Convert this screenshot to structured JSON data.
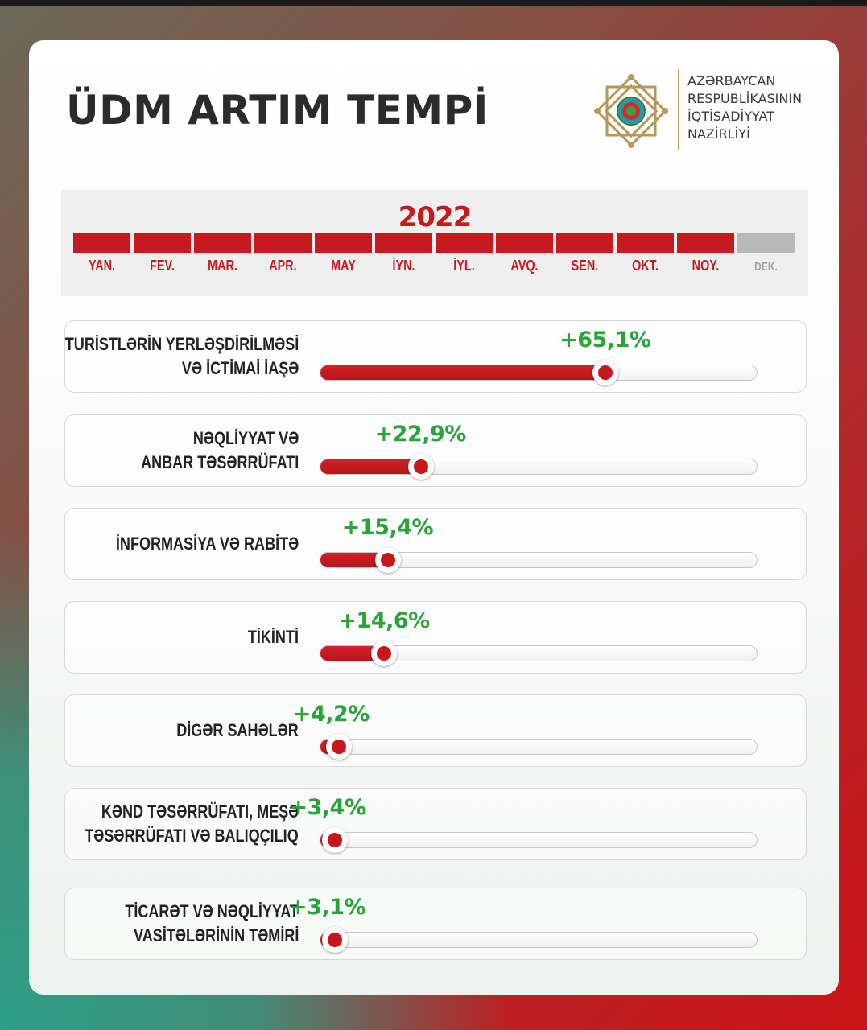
{
  "title": "ÜDM ARTIM TEMPİ",
  "ministry": {
    "lines": [
      "AZƏRBAYCAN",
      "RESPUBLİKASININ",
      "İQTİSADİYYAT",
      "NAZİRLİYİ"
    ]
  },
  "timeline": {
    "year": "2022",
    "months": [
      {
        "label": "YAN.",
        "active": true
      },
      {
        "label": "FEV.",
        "active": true
      },
      {
        "label": "MAR.",
        "active": true
      },
      {
        "label": "APR.",
        "active": true
      },
      {
        "label": "MAY",
        "active": true
      },
      {
        "label": "İYN.",
        "active": true
      },
      {
        "label": "İYL.",
        "active": true
      },
      {
        "label": "AVQ.",
        "active": true
      },
      {
        "label": "SEN.",
        "active": true
      },
      {
        "label": "OKT.",
        "active": true
      },
      {
        "label": "NOY.",
        "active": true
      },
      {
        "label": "DEK.",
        "active": false
      }
    ]
  },
  "colors": {
    "accent_red": "#c41b20",
    "value_green": "#2aa33a",
    "inactive_gray": "#b9b9b9"
  },
  "chart_data": {
    "type": "bar",
    "title": "ÜDM ARTIM TEMPİ",
    "subtitle": "2022",
    "categories": [
      [
        "TURİSTLƏRİN YERLƏŞDİRİLMƏSİ",
        "VƏ İCTİMAİ İAŞƏ"
      ],
      [
        "NƏQLİYYAT VƏ",
        "ANBAR TƏSƏRRÜFATI"
      ],
      [
        "İNFORMASİYA VƏ RABİTƏ"
      ],
      [
        "TİKİNTİ"
      ],
      [
        "DİGƏR SAHƏLƏR"
      ],
      [
        "KƏND TƏSƏRRÜFATI, MEŞƏ",
        "TƏSƏRRÜFATI VƏ BALIQÇILIQ"
      ],
      [
        "TİCARƏT VƏ NƏQLİYYAT",
        "VASİTƏLƏRİNİN TƏMİRİ"
      ]
    ],
    "values": [
      65.1,
      22.9,
      15.4,
      14.6,
      4.2,
      3.4,
      3.1
    ],
    "value_labels": [
      "+65,1%",
      "+22,9%",
      "+15,4%",
      "+14,6%",
      "+4,2%",
      "+3,4%",
      "+3,1%"
    ],
    "xlim": [
      0,
      100
    ],
    "orientation": "horizontal",
    "grid": false
  }
}
